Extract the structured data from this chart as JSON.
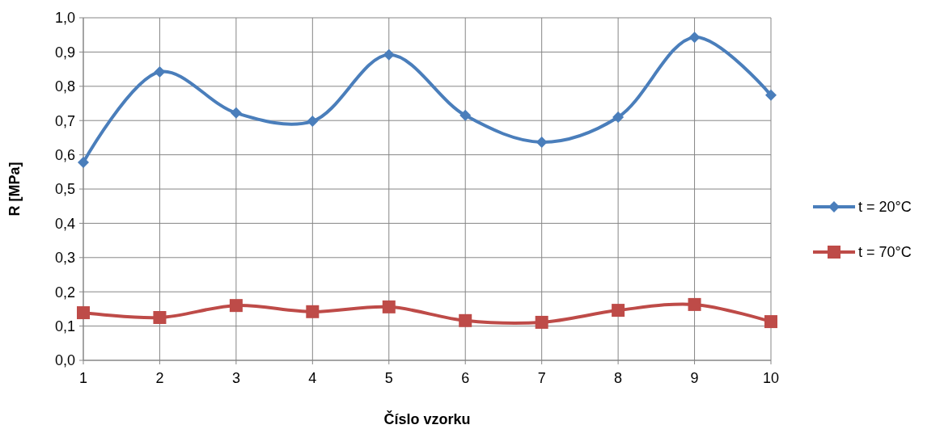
{
  "chart_data": {
    "type": "line",
    "xlabel": "Číslo vzorku",
    "ylabel": "R [MPa]",
    "x": [
      1,
      2,
      3,
      4,
      5,
      6,
      7,
      8,
      9,
      10
    ],
    "series": [
      {
        "name": "t = 20°C",
        "color": "#4a7ebb",
        "marker": "diamond",
        "values": [
          0.578,
          0.842,
          0.722,
          0.698,
          0.892,
          0.715,
          0.637,
          0.71,
          0.943,
          0.774
        ]
      },
      {
        "name": "t = 70°C",
        "color": "#be4b48",
        "marker": "square",
        "values": [
          0.139,
          0.125,
          0.16,
          0.142,
          0.156,
          0.116,
          0.111,
          0.146,
          0.163,
          0.113
        ]
      }
    ],
    "xlim": [
      1,
      10
    ],
    "xticks": [
      1,
      2,
      3,
      4,
      5,
      6,
      7,
      8,
      9,
      10
    ],
    "ylim": [
      0,
      1
    ],
    "yticks": [
      {
        "value": 0,
        "label": "0,0"
      },
      {
        "value": 0.1,
        "label": "0,1"
      },
      {
        "value": 0.2,
        "label": "0,2"
      },
      {
        "value": 0.3,
        "label": "0,3"
      },
      {
        "value": 0.4,
        "label": "0,4"
      },
      {
        "value": 0.5,
        "label": "0,5"
      },
      {
        "value": 0.6,
        "label": "0,6"
      },
      {
        "value": 0.7,
        "label": "0,7"
      },
      {
        "value": 0.8,
        "label": "0,8"
      },
      {
        "value": 0.9,
        "label": "0,9"
      },
      {
        "value": 1,
        "label": "1,0"
      }
    ],
    "grid": true,
    "legend": "right",
    "line_style": "solid"
  }
}
